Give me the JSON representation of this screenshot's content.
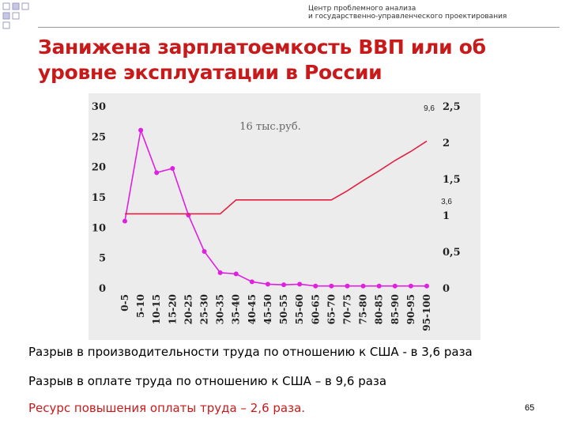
{
  "header": {
    "org_line1": "Центр проблемного анализа",
    "org_line2": "и государственно-управленческого проектирования"
  },
  "title": {
    "line1": "Занижена зарплатоемкость ВВП или об",
    "line2": "уровне эксплуатации в России"
  },
  "chart_data": {
    "type": "line",
    "categories": [
      "0-5",
      "5-10",
      "10-15",
      "15-20",
      "20-25",
      "25-30",
      "30-35",
      "35-40",
      "40-45",
      "45-50",
      "50-55",
      "55-60",
      "60-65",
      "65-70",
      "70-75",
      "75-80",
      "80-85",
      "85-90",
      "90-95",
      "95-100"
    ],
    "y_left": {
      "ticks": [
        "0",
        "5",
        "10",
        "15",
        "20",
        "25",
        "30"
      ],
      "ylim": [
        0,
        30
      ]
    },
    "y_right": {
      "ticks": [
        "0",
        "0,5",
        "1",
        "1,5",
        "2",
        "2,5"
      ],
      "ylim": [
        0,
        2.5
      ]
    },
    "series": [
      {
        "axis": "left",
        "color": "#e020e0",
        "markers": true,
        "values": [
          11,
          26,
          19,
          19.7,
          12,
          6,
          2.5,
          2.3,
          1,
          0.6,
          0.5,
          0.6,
          0.3,
          0.3,
          0.3,
          0.3,
          0.3,
          0.3,
          0.3,
          0.3
        ]
      },
      {
        "axis": "left",
        "color": "#e02040",
        "markers": false,
        "values": [
          12.2,
          12.2,
          12.2,
          12.2,
          12.2,
          12.2,
          12.2,
          14.5,
          14.5,
          14.5,
          14.5,
          14.5,
          14.5,
          14.5,
          16,
          17.7,
          19.3,
          21,
          22.5,
          24.2
        ]
      }
    ],
    "annotations": {
      "note_16k": "16 тыс.руб.",
      "label_96": "9,6",
      "label_36": "3,6"
    },
    "grid": false,
    "background": "#ececec"
  },
  "text": {
    "line1": "Разрыв в производительности труда по отношению к США - в 3,6 раза",
    "line2": "Разрыв в оплате труда по отношению к США – в 9,6 раза",
    "line3": "Ресурс повышения оплаты труда – 2,6 раза."
  },
  "page_number": "65",
  "colors": {
    "title": "#c81a1a",
    "accent": "#c81a1a",
    "squares_fill": "#c8c8e6",
    "squares_border": "#9b9bc8"
  }
}
